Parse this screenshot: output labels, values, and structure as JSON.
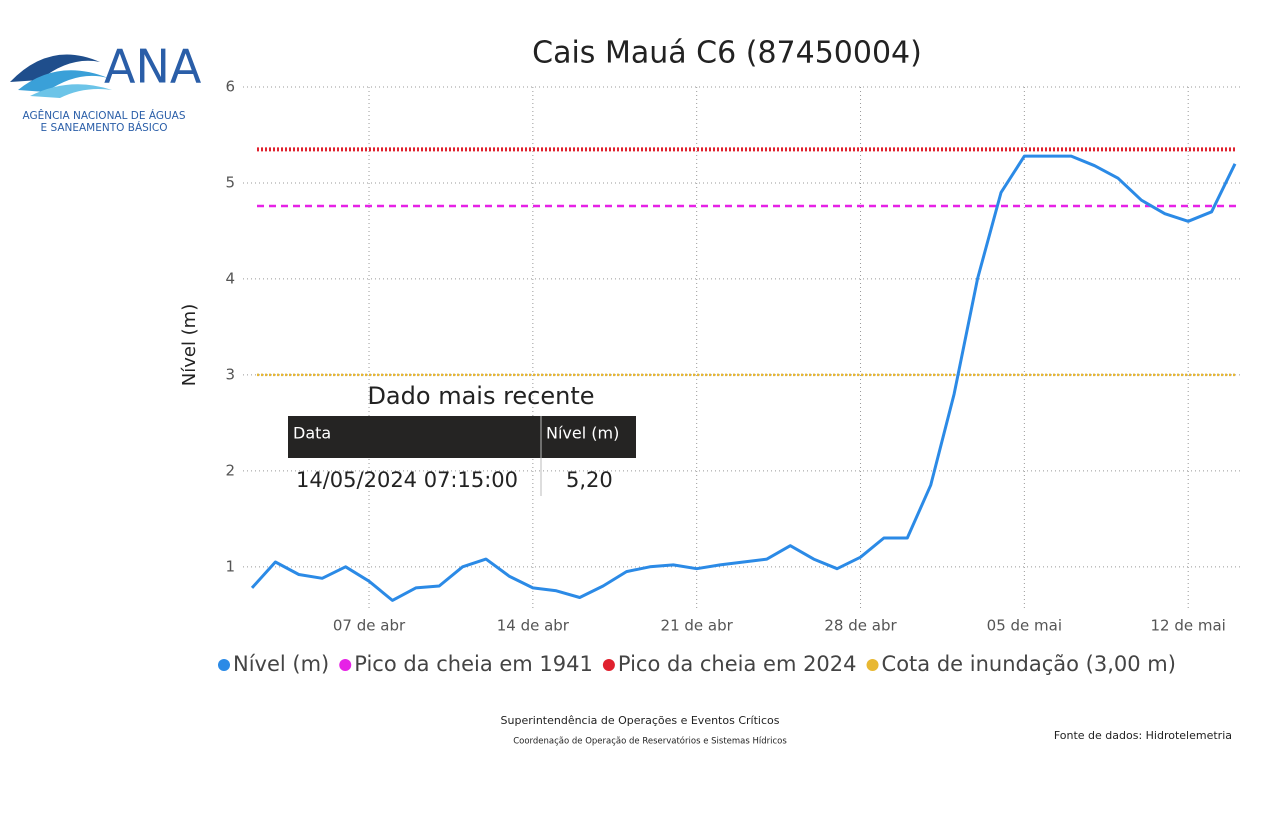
{
  "logo": {
    "name": "ANA",
    "line1": "AGÊNCIA NACIONAL DE ÁGUAS",
    "line2": "E SANEAMENTO BÁSICO"
  },
  "chart_data": {
    "type": "line",
    "title": "Cais Mauá C6 (87450004)",
    "y_label": "Nível (m)",
    "x": [
      "02 de abr",
      "03 de abr",
      "04 de abr",
      "05 de abr",
      "06 de abr",
      "07 de abr",
      "08 de abr",
      "09 de abr",
      "10 de abr",
      "11 de abr",
      "12 de abr",
      "13 de abr",
      "14 de abr",
      "15 de abr",
      "16 de abr",
      "17 de abr",
      "18 de abr",
      "19 de abr",
      "20 de abr",
      "21 de abr",
      "22 de abr",
      "23 de abr",
      "24 de abr",
      "25 de abr",
      "26 de abr",
      "27 de abr",
      "28 de abr",
      "29 de abr",
      "30 de abr",
      "01 de mai",
      "02 de mai",
      "03 de mai",
      "04 de mai",
      "05 de mai",
      "06 de mai",
      "07 de mai",
      "08 de mai",
      "09 de mai",
      "10 de mai",
      "11 de mai",
      "12 de mai",
      "13 de mai",
      "14 de mai"
    ],
    "xticks": [
      "07 de abr",
      "14 de abr",
      "21 de abr",
      "28 de abr",
      "05 de mai",
      "12 de mai"
    ],
    "series": [
      {
        "name": "Nível (m)",
        "color": "#2b8ae6",
        "values": [
          0.78,
          1.05,
          0.92,
          0.88,
          1.0,
          0.85,
          0.65,
          0.78,
          0.8,
          1.0,
          1.08,
          0.9,
          0.78,
          0.75,
          0.68,
          0.8,
          0.95,
          1.0,
          1.02,
          0.98,
          1.02,
          1.05,
          1.08,
          1.22,
          1.08,
          0.98,
          1.1,
          1.3,
          1.3,
          1.85,
          2.8,
          4.0,
          4.9,
          5.28,
          5.28,
          5.28,
          5.18,
          5.05,
          4.82,
          4.68,
          4.6,
          4.7,
          5.2
        ]
      }
    ],
    "reference_lines": [
      {
        "name": "Pico da cheia em 1941",
        "value": 4.76,
        "color": "#e622e6",
        "style": "dashed"
      },
      {
        "name": "Pico da cheia em 2024",
        "value": 5.35,
        "color": "#e0212e",
        "style": "dotted"
      },
      {
        "name": "Cota de inundação (3,00 m)",
        "value": 3.0,
        "color": "#e8b832",
        "style": "dotted"
      }
    ],
    "ylim": [
      0.55,
      6
    ],
    "yticks": [
      1,
      2,
      3,
      4,
      5,
      6
    ],
    "grid": true
  },
  "latest_table": {
    "title": "Dado mais recente",
    "columns": [
      "Data",
      "Nível (m)"
    ],
    "rows": [
      [
        "14/05/2024 07:15:00",
        "5,20"
      ]
    ]
  },
  "footer": {
    "line1": "Superintendência de Operações e Eventos Críticos",
    "line2": "Coordenação de Operação de Reservatórios e Sistemas Hídricos",
    "source": "Fonte de dados: Hidrotelemetria"
  }
}
